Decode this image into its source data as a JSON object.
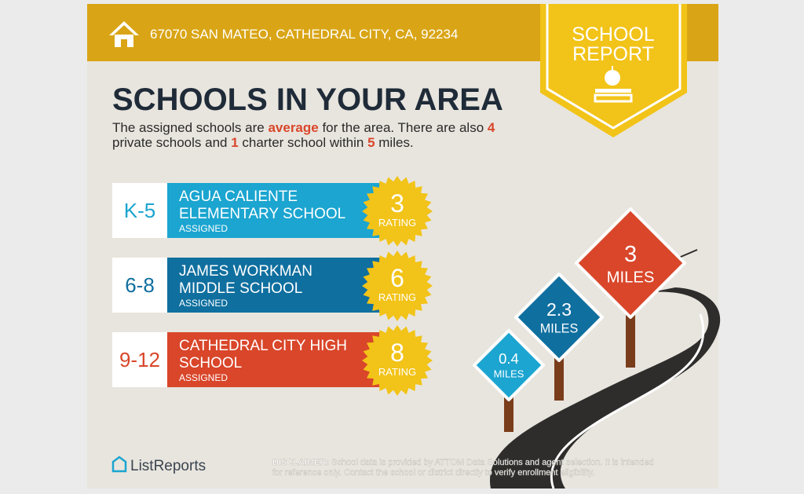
{
  "header": {
    "address": "67070 SAN MATEO, CATHEDRAL CITY, CA, 92234"
  },
  "badge": {
    "line1": "SCHOOL",
    "line2": "REPORT"
  },
  "title": "SCHOOLS IN YOUR AREA",
  "summary": {
    "lines": [
      [
        "The assigned schools are ",
        "average",
        " for the area. There are also ",
        "4"
      ],
      [
        "private schools and ",
        "1",
        " charter school within ",
        "5",
        " miles."
      ]
    ]
  },
  "schools": [
    {
      "grade": "K-5",
      "name": [
        "AGUA CALIENTE",
        "ELEMENTARY SCHOOL"
      ],
      "status": "ASSIGNED",
      "rating": 3,
      "rating_label": "RATING",
      "color": "#1ba5d0"
    },
    {
      "grade": "6-8",
      "name": [
        "JAMES WORKMAN",
        "MIDDLE SCHOOL"
      ],
      "status": "ASSIGNED",
      "rating": 6,
      "rating_label": "RATING",
      "color": "#0f6f9f"
    },
    {
      "grade": "9-12",
      "name": [
        "CATHEDRAL CITY HIGH",
        "SCHOOL"
      ],
      "status": "ASSIGNED",
      "rating": 8,
      "rating_label": "RATING",
      "color": "#d9462a"
    }
  ],
  "signs": [
    {
      "distance": 0.4,
      "unit": "MILES",
      "color": "#1ba5d0"
    },
    {
      "distance": 2.3,
      "unit": "MILES",
      "color": "#0f6f9f"
    },
    {
      "distance": 3,
      "unit": "MILES",
      "color": "#d9462a"
    }
  ],
  "footer": {
    "brand": "ListReports",
    "disclaimer_label": "DISCLAIMER:",
    "disclaimer": [
      "School data is provided by ATTOM Data Solutions and agent selection. It is intended",
      "for reference only. Contact the school or district directly to verify enrollment eligibility."
    ]
  }
}
